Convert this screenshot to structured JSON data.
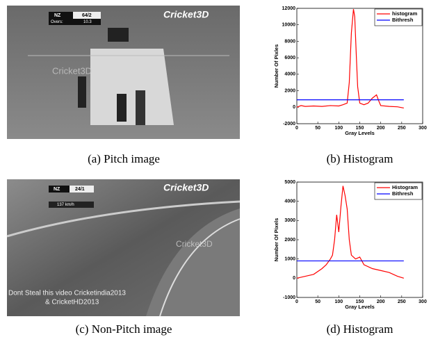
{
  "images": [
    {
      "caption": "(a) Pitch image",
      "texts": [
        "NZ",
        "64/2",
        "Overs:",
        "10.3",
        "Cricket3D",
        "Cricket3D"
      ]
    },
    {
      "caption": "(c) Non-Pitch image",
      "texts": [
        "NZ",
        "24/1",
        "137 km/h",
        "Cricket3D",
        "Cricket3D",
        "Dont Steal this video Cricketindia2013",
        "& CricketHD2013"
      ]
    }
  ],
  "chart_data": [
    {
      "type": "line",
      "caption": "(b) Histogram",
      "xlabel": "Gray Levels",
      "ylabel": "Number Of Pixles",
      "xlim": [
        0,
        300
      ],
      "xticks": [
        0,
        50,
        100,
        150,
        200,
        250,
        300
      ],
      "ylim": [
        -2000,
        12000
      ],
      "yticks": [
        -2000,
        0,
        2000,
        4000,
        6000,
        8000,
        10000,
        12000
      ],
      "legend": "upper right",
      "series": [
        {
          "name": "histogram",
          "color": "#ff0000",
          "x": [
            0,
            10,
            20,
            40,
            60,
            80,
            100,
            110,
            120,
            125,
            130,
            135,
            138,
            142,
            145,
            150,
            155,
            160,
            170,
            180,
            185,
            190,
            195,
            200,
            220,
            240,
            255
          ],
          "values": [
            0,
            200,
            100,
            150,
            100,
            200,
            150,
            300,
            500,
            3000,
            9000,
            11900,
            11000,
            6000,
            2500,
            500,
            400,
            300,
            500,
            1100,
            1300,
            1500,
            800,
            200,
            100,
            50,
            -100
          ]
        },
        {
          "name": "Bithresh",
          "color": "#0000ff",
          "x": [
            0,
            255
          ],
          "values": [
            900,
            900
          ]
        }
      ]
    },
    {
      "type": "line",
      "caption": "(d) Histogram",
      "xlabel": "Gray Levels",
      "ylabel": "Number Of Pixels",
      "xlim": [
        0,
        300
      ],
      "xticks": [
        0,
        50,
        100,
        150,
        200,
        250,
        300
      ],
      "ylim": [
        -1000,
        5000
      ],
      "yticks": [
        -1000,
        0,
        1000,
        2000,
        3000,
        4000,
        5000
      ],
      "legend": "upper right",
      "series": [
        {
          "name": "Histogram",
          "color": "#ff0000",
          "x": [
            0,
            20,
            40,
            60,
            70,
            80,
            85,
            90,
            95,
            100,
            105,
            110,
            115,
            120,
            125,
            130,
            140,
            150,
            160,
            180,
            200,
            220,
            240,
            255
          ],
          "values": [
            0,
            100,
            200,
            500,
            700,
            1000,
            1200,
            2000,
            3300,
            2400,
            3700,
            4800,
            4300,
            3600,
            2000,
            1200,
            1000,
            1100,
            700,
            500,
            400,
            300,
            100,
            0
          ]
        },
        {
          "name": "Bithresh",
          "color": "#0000ff",
          "x": [
            0,
            255
          ],
          "values": [
            900,
            900
          ]
        }
      ]
    }
  ]
}
